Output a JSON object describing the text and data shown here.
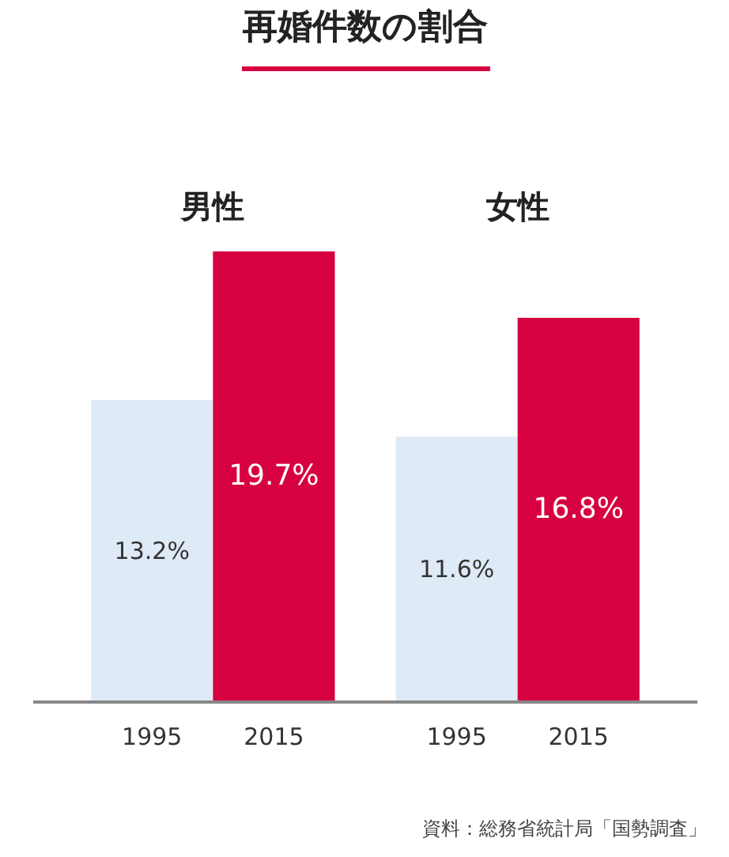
{
  "chart_data": {
    "type": "bar",
    "title": "再婚件数の割合",
    "categories": [
      "男性",
      "女性"
    ],
    "series": [
      {
        "name": "1995",
        "color": "#deeaf6",
        "values": [
          13.2,
          11.6
        ],
        "value_labels": [
          "13.2%",
          "11.6%"
        ]
      },
      {
        "name": "2015",
        "color": "#d70040",
        "values": [
          19.7,
          16.8
        ],
        "value_labels": [
          "19.7%",
          "16.8%"
        ]
      }
    ],
    "annotations": [
      "資料：総務省統計局「国勢調査」"
    ]
  }
}
